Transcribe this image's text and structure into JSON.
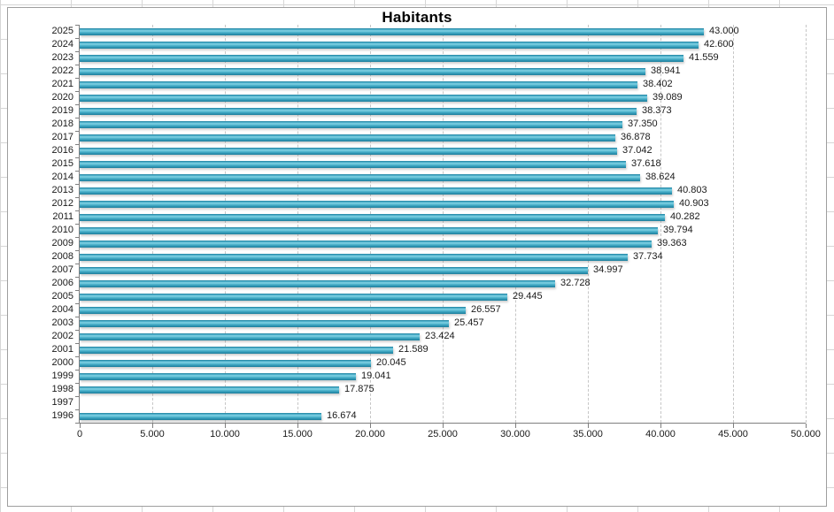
{
  "chart_data": {
    "type": "bar",
    "orientation": "horizontal",
    "title": "Habitants",
    "xlabel": "",
    "ylabel": "",
    "legend": "none",
    "grid": "vertical-dashed",
    "xlim": [
      0,
      50000
    ],
    "x_ticks": [
      "0",
      "5.000",
      "10.000",
      "15.000",
      "20.000",
      "25.000",
      "30.000",
      "35.000",
      "40.000",
      "45.000",
      "50.000"
    ],
    "categories": [
      "2025",
      "2024",
      "2023",
      "2022",
      "2021",
      "2020",
      "2019",
      "2018",
      "2017",
      "2016",
      "2015",
      "2014",
      "2013",
      "2012",
      "2011",
      "2010",
      "2009",
      "2008",
      "2007",
      "2006",
      "2005",
      "2004",
      "2003",
      "2002",
      "2001",
      "2000",
      "1999",
      "1998",
      "1997",
      "1996"
    ],
    "values": [
      43000,
      42600,
      41559,
      38941,
      38402,
      39089,
      38373,
      37350,
      36878,
      37042,
      37618,
      38624,
      40803,
      40903,
      40282,
      39794,
      39363,
      37734,
      34997,
      32728,
      29445,
      26557,
      25457,
      23424,
      21589,
      20045,
      19041,
      17875,
      null,
      16674
    ],
    "value_labels": [
      "43.000",
      "42.600",
      "41.559",
      "38.941",
      "38.402",
      "39.089",
      "38.373",
      "37.350",
      "36.878",
      "37.042",
      "37.618",
      "38.624",
      "40.803",
      "40.903",
      "40.282",
      "39.794",
      "39.363",
      "37.734",
      "34.997",
      "32.728",
      "29.445",
      "26.557",
      "25.457",
      "23.424",
      "21.589",
      "20.045",
      "19.041",
      "17.875",
      null,
      "16.674"
    ],
    "colors": {
      "bar": "#2e9ab8",
      "bar_highlight": "#82d2e4",
      "bar_edge": "#1e7e9b",
      "axis": "#7f7f7f",
      "gridline": "#c6c6c6",
      "label": "#1a1a1a",
      "title": "#000000",
      "sheet_gridline": "#d6d6d6",
      "chart_border": "#9e9e9e"
    }
  }
}
